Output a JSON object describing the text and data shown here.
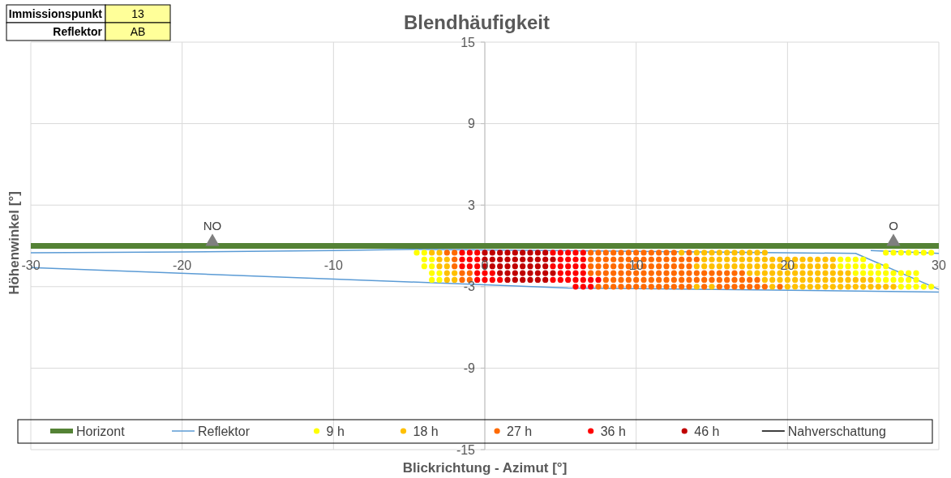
{
  "chart_data": {
    "type": "scatter",
    "title": "Blendhäufigkeit",
    "xlabel": "Blickrichtung - Azimut [°]",
    "ylabel": "Höhenwinkel [°]",
    "annotations": [
      "Immissionspunkt",
      "13",
      "Reflektor",
      "AB"
    ],
    "xlim": [
      -30,
      30
    ],
    "xticks": [
      -30,
      -20,
      -10,
      0,
      10,
      20,
      30
    ],
    "ylim": [
      -15,
      15
    ],
    "yticks": [
      -15,
      -9,
      -3,
      3,
      9,
      15
    ],
    "grid": true,
    "legend": "bottom",
    "series": [
      {
        "name": "Horizont",
        "type": "line",
        "color": "#548235",
        "x": [
          -30,
          30
        ],
        "values": [
          0,
          0
        ]
      },
      {
        "name": "Reflektor",
        "type": "line",
        "color": "#5b9bd5",
        "x": [
          -30,
          -20,
          -10,
          -4.5,
          24.5,
          30,
          null,
          -30,
          -5,
          5.5,
          19,
          30,
          null,
          25.5,
          30
        ],
        "values": [
          -0.5,
          -0.45,
          -0.35,
          -0.25,
          -0.55,
          -3.2,
          null,
          -1.6,
          -2.65,
          -3.1,
          -3.25,
          -3.4,
          null,
          -0.35,
          -0.55
        ]
      },
      {
        "name": "9 h",
        "color": "#ffff00",
        "x": [
          -4.5,
          -4,
          26.5,
          27,
          27.5,
          28,
          28.5,
          29,
          29.5,
          -4,
          -3.5,
          23.5,
          24,
          24.5,
          25,
          -4,
          -3.5,
          23.5,
          24,
          24.5,
          25,
          25.5,
          26,
          26.5,
          -3.5,
          -3,
          24.5,
          25,
          25.5,
          26,
          26.5,
          27,
          27.5,
          28,
          28.5,
          -3.5,
          -3,
          26,
          26.5,
          27,
          27.5,
          28,
          28.5,
          27.5,
          28,
          28.5,
          29,
          29.5
        ],
        "values": [
          -0.5,
          -0.5,
          -0.5,
          -0.5,
          -0.5,
          -0.5,
          -0.5,
          -0.5,
          -0.5,
          -1,
          -1,
          -1,
          -1,
          -1,
          -1,
          -1.5,
          -1.5,
          -1.5,
          -1.5,
          -1.5,
          -1.5,
          -1.5,
          -1.5,
          -1.5,
          -2,
          -2,
          -2,
          -2,
          -2,
          -2,
          -2,
          -2,
          -2,
          -2,
          -2,
          -2.5,
          -2.5,
          -2.5,
          -2.5,
          -2.5,
          -2.5,
          -2.5,
          -2.5,
          -3,
          -3,
          -3,
          -3,
          -3
        ]
      },
      {
        "name": "18 h",
        "color": "#ffc000",
        "x": [
          -3.5,
          -3,
          13,
          14,
          14.5,
          15,
          15.5,
          16,
          16.5,
          17,
          17.5,
          18,
          18.5,
          -3,
          -2.5,
          14.5,
          15,
          15.5,
          16,
          16.5,
          17,
          17.5,
          18,
          18.5,
          19,
          19.5,
          20,
          20.5,
          21,
          21.5,
          22,
          22.5,
          23,
          -3,
          -2.5,
          14,
          14.5,
          15,
          15.5,
          16,
          16.5,
          17,
          17.5,
          18,
          18.5,
          19,
          19.5,
          20,
          20.5,
          21,
          21.5,
          22,
          22.5,
          23,
          -2.5,
          -2,
          17.5,
          18,
          18.5,
          19,
          19.5,
          20,
          20.5,
          21,
          21.5,
          22,
          22.5,
          23,
          23.5,
          24,
          -2.5,
          -2,
          18.5,
          19,
          19.5,
          20,
          20.5,
          21,
          21.5,
          22,
          22.5,
          23,
          23.5,
          24,
          24.5,
          25,
          25.5,
          14,
          15,
          19,
          20,
          20.5,
          21,
          21.5,
          22,
          22.5,
          23,
          23.5,
          24,
          24.5,
          25,
          25.5,
          26,
          26.5,
          27
        ],
        "values": [
          -0.5,
          -0.5,
          -0.5,
          -0.5,
          -0.5,
          -0.5,
          -0.5,
          -0.5,
          -0.5,
          -0.5,
          -0.5,
          -0.5,
          -0.5,
          -1,
          -1,
          -1,
          -1,
          -1,
          -1,
          -1,
          -1,
          -1,
          -1,
          -1,
          -1,
          -1,
          -1,
          -1,
          -1,
          -1,
          -1,
          -1,
          -1,
          -1.5,
          -1.5,
          -1.5,
          -1.5,
          -1.5,
          -1.5,
          -1.5,
          -1.5,
          -1.5,
          -1.5,
          -1.5,
          -1.5,
          -1.5,
          -1.5,
          -1.5,
          -1.5,
          -1.5,
          -1.5,
          -1.5,
          -1.5,
          -1.5,
          -2,
          -2,
          -2,
          -2,
          -2,
          -2,
          -2,
          -2,
          -2,
          -2,
          -2,
          -2,
          -2,
          -2,
          -2,
          -2,
          -2.5,
          -2.5,
          -2.5,
          -2.5,
          -2.5,
          -2.5,
          -2.5,
          -2.5,
          -2.5,
          -2.5,
          -2.5,
          -2.5,
          -2.5,
          -2.5,
          -2.5,
          -2.5,
          -2.5,
          -3,
          -3,
          -3,
          -3,
          -3,
          -3,
          -3,
          -3,
          -3,
          -3,
          -3,
          -3,
          -3,
          -3,
          -3,
          -3,
          -3,
          -3
        ]
      },
      {
        "name": "27 h",
        "color": "#ff6a00",
        "x": [
          -2.5,
          -2,
          7,
          7.5,
          8,
          8.5,
          9,
          9.5,
          10,
          10.5,
          11,
          11.5,
          12,
          12.5,
          13.5,
          -2,
          7,
          7.5,
          8,
          8.5,
          9,
          9.5,
          10,
          10.5,
          11,
          11.5,
          12,
          12.5,
          13,
          13.5,
          14,
          -2,
          7,
          7.5,
          8,
          8.5,
          9,
          9.5,
          10,
          10.5,
          11,
          11.5,
          12,
          12.5,
          13,
          13.5,
          -1.5,
          -1,
          7,
          7.5,
          8,
          8.5,
          9,
          9.5,
          10,
          10.5,
          11,
          11.5,
          12,
          12.5,
          13,
          13.5,
          14,
          14.5,
          15,
          15.5,
          16,
          16.5,
          17,
          -1.5,
          -1,
          8,
          8.5,
          9,
          9.5,
          10,
          10.5,
          11,
          11.5,
          12,
          12.5,
          13,
          13.5,
          14,
          14.5,
          15,
          15.5,
          16,
          16.5,
          17,
          17.5,
          18,
          7.5,
          8,
          8.5,
          9,
          9.5,
          10,
          10.5,
          11,
          11.5,
          12,
          12.5,
          13,
          13.5,
          14.5,
          15.5,
          16,
          16.5,
          17,
          17.5,
          18,
          18.5,
          19.5
        ],
        "values": [
          -0.5,
          -0.5,
          -0.5,
          -0.5,
          -0.5,
          -0.5,
          -0.5,
          -0.5,
          -0.5,
          -0.5,
          -0.5,
          -0.5,
          -0.5,
          -0.5,
          -0.5,
          -1,
          -1,
          -1,
          -1,
          -1,
          -1,
          -1,
          -1,
          -1,
          -1,
          -1,
          -1,
          -1,
          -1,
          -1,
          -1,
          -1.5,
          -1.5,
          -1.5,
          -1.5,
          -1.5,
          -1.5,
          -1.5,
          -1.5,
          -1.5,
          -1.5,
          -1.5,
          -1.5,
          -1.5,
          -1.5,
          -1.5,
          -2,
          -2,
          -2,
          -2,
          -2,
          -2,
          -2,
          -2,
          -2,
          -2,
          -2,
          -2,
          -2,
          -2,
          -2,
          -2,
          -2,
          -2,
          -2,
          -2,
          -2,
          -2,
          -2,
          -2.5,
          -2.5,
          -2.5,
          -2.5,
          -2.5,
          -2.5,
          -2.5,
          -2.5,
          -2.5,
          -2.5,
          -2.5,
          -2.5,
          -2.5,
          -2.5,
          -2.5,
          -2.5,
          -2.5,
          -2.5,
          -2.5,
          -2.5,
          -2.5,
          -2.5,
          -2.5,
          -3,
          -3,
          -3,
          -3,
          -3,
          -3,
          -3,
          -3,
          -3,
          -3,
          -3,
          -3,
          -3,
          -3,
          -3,
          -3,
          -3,
          -3,
          -3,
          -3,
          -3,
          -3
        ]
      },
      {
        "name": "36 h",
        "color": "#ff0000",
        "x": [
          -1.5,
          -1,
          -0.5,
          4.5,
          5,
          5.5,
          6,
          6.5,
          -1.5,
          -1,
          -0.5,
          5,
          5.5,
          6,
          6.5,
          -1.5,
          -1,
          -0.5,
          4.5,
          5,
          5.5,
          6,
          6.5,
          -0.5,
          0,
          0.5,
          5,
          5.5,
          6,
          6.5,
          -0.5,
          0,
          0.5,
          1,
          4.5,
          5,
          5.5,
          6,
          6.5,
          7,
          7.5,
          6,
          6.5,
          7
        ],
        "values": [
          -0.5,
          -0.5,
          -0.5,
          -0.5,
          -0.5,
          -0.5,
          -0.5,
          -0.5,
          -1,
          -1,
          -1,
          -1,
          -1,
          -1,
          -1,
          -1.5,
          -1.5,
          -1.5,
          -1.5,
          -1.5,
          -1.5,
          -1.5,
          -1.5,
          -2,
          -2,
          -2,
          -2,
          -2,
          -2,
          -2,
          -2.5,
          -2.5,
          -2.5,
          -2.5,
          -2.5,
          -2.5,
          -2.5,
          -2.5,
          -2.5,
          -2.5,
          -2.5,
          -3,
          -3,
          -3
        ]
      },
      {
        "name": "46 h",
        "color": "#c00000",
        "x": [
          0,
          0.5,
          1,
          1.5,
          2,
          2.5,
          3,
          3.5,
          4,
          0,
          0.5,
          1,
          1.5,
          2,
          2.5,
          3,
          3.5,
          4,
          4.5,
          0,
          0.5,
          1,
          1.5,
          2,
          2.5,
          3,
          3.5,
          4,
          1,
          1.5,
          2,
          2.5,
          3,
          3.5,
          4,
          4.5,
          1.5,
          2,
          2.5,
          3,
          3.5,
          4
        ],
        "values": [
          -0.5,
          -0.5,
          -0.5,
          -0.5,
          -0.5,
          -0.5,
          -0.5,
          -0.5,
          -0.5,
          -1,
          -1,
          -1,
          -1,
          -1,
          -1,
          -1,
          -1,
          -1,
          -1,
          -1.5,
          -1.5,
          -1.5,
          -1.5,
          -1.5,
          -1.5,
          -1.5,
          -1.5,
          -1.5,
          -2,
          -2,
          -2,
          -2,
          -2,
          -2,
          -2,
          -2,
          -2.5,
          -2.5,
          -2.5,
          -2.5,
          -2.5,
          -2.5
        ]
      },
      {
        "name": "Nahverschattung",
        "type": "line",
        "color": "#000000"
      },
      {
        "color": "#7f7f7f",
        "marker": "triangle",
        "x": [
          -18,
          27
        ],
        "values": [
          0.3,
          0.3
        ],
        "value_labels": [
          "NO",
          "O"
        ]
      }
    ]
  }
}
